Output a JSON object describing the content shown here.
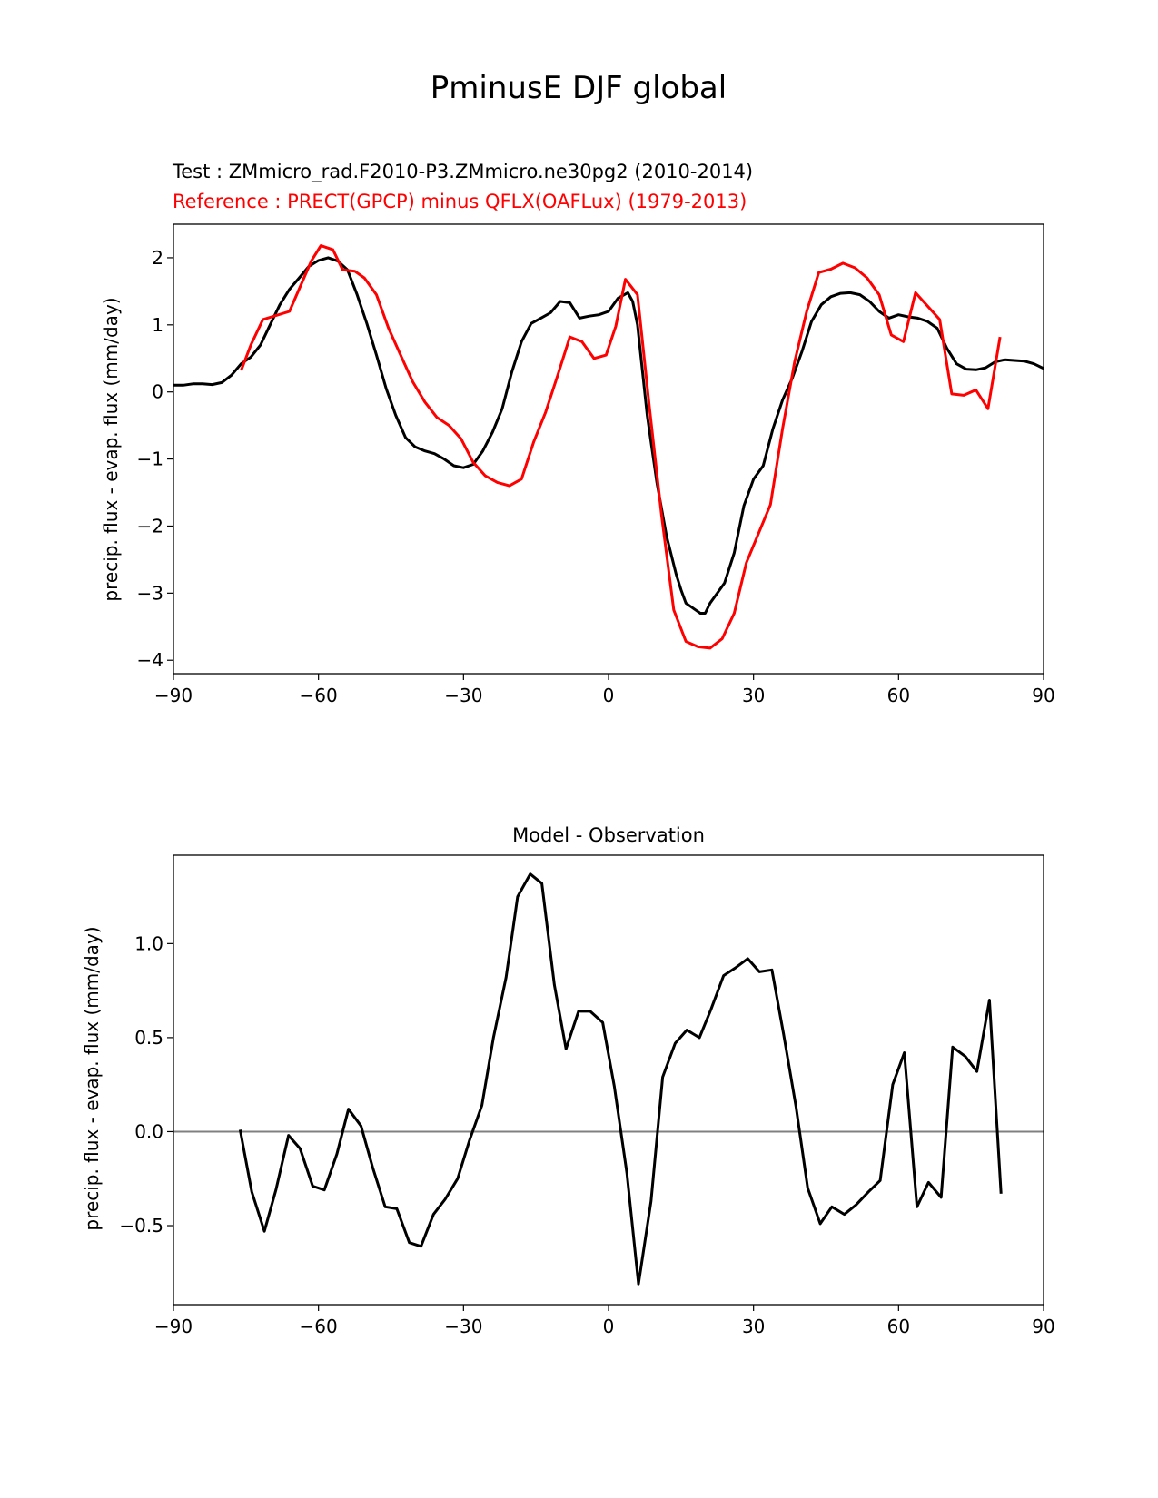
{
  "figure": {
    "title": "PminusE DJF global"
  },
  "colors": {
    "test": "#000000",
    "reference": "#ff0000",
    "zero_line": "#808080"
  },
  "chart_data": [
    {
      "type": "line",
      "title_test": "Test : ZMmicro_rad.F2010-P3.ZMmicro.ne30pg2 (2010-2014)",
      "title_reference": "Reference : PRECT(GPCP) minus QFLX(OAFLux) (1979-2013)",
      "xlabel": "",
      "ylabel": "precip. flux - evap. flux (mm/day)",
      "xlim": [
        -90,
        90
      ],
      "ylim": [
        -4.2,
        2.5
      ],
      "xticks": [
        -90,
        -60,
        -30,
        0,
        30,
        60,
        90
      ],
      "xtick_labels": [
        "−90",
        "−60",
        "−30",
        "0",
        "30",
        "60",
        "90"
      ],
      "yticks": [
        -4,
        -3,
        -2,
        -1,
        0,
        1,
        2
      ],
      "ytick_labels": [
        "−4",
        "−3",
        "−2",
        "−1",
        "0",
        "1",
        "2"
      ],
      "grid": false,
      "series": [
        {
          "key": "test",
          "x": [
            -90,
            -88,
            -86,
            -84,
            -82,
            -80,
            -78,
            -76,
            -74,
            -72,
            -70,
            -68,
            -66,
            -64,
            -62,
            -60,
            -58,
            -56,
            -54,
            -52,
            -50,
            -48,
            -46,
            -44,
            -42,
            -40,
            -38,
            -36,
            -34,
            -32,
            -30,
            -28,
            -26,
            -24,
            -22,
            -20,
            -18,
            -16,
            -14,
            -12,
            -10,
            -8,
            -6,
            -4,
            -2,
            0,
            2,
            4,
            5,
            6,
            8,
            10,
            12,
            14,
            15,
            16,
            18,
            19,
            20,
            21,
            22,
            24,
            26,
            28,
            30,
            32,
            34,
            36,
            38,
            40,
            42,
            44,
            46,
            48,
            50,
            52,
            54,
            56,
            58,
            60,
            62,
            64,
            66,
            68,
            70,
            72,
            74,
            76,
            78,
            80,
            82,
            84,
            86,
            88,
            90
          ],
          "y": [
            0.1,
            0.1,
            0.12,
            0.12,
            0.11,
            0.14,
            0.25,
            0.42,
            0.52,
            0.7,
            1.0,
            1.3,
            1.53,
            1.7,
            1.87,
            1.96,
            2.0,
            1.95,
            1.82,
            1.45,
            1.02,
            0.55,
            0.05,
            -0.35,
            -0.68,
            -0.82,
            -0.88,
            -0.92,
            -1.0,
            -1.1,
            -1.13,
            -1.08,
            -0.88,
            -0.6,
            -0.25,
            0.3,
            0.75,
            1.02,
            1.1,
            1.18,
            1.35,
            1.33,
            1.1,
            1.13,
            1.15,
            1.2,
            1.4,
            1.48,
            1.35,
            1.0,
            -0.35,
            -1.35,
            -2.15,
            -2.72,
            -2.95,
            -3.15,
            -3.25,
            -3.3,
            -3.3,
            -3.15,
            -3.05,
            -2.85,
            -2.4,
            -1.7,
            -1.3,
            -1.1,
            -0.55,
            -0.12,
            0.2,
            0.6,
            1.05,
            1.3,
            1.42,
            1.47,
            1.48,
            1.45,
            1.35,
            1.2,
            1.1,
            1.15,
            1.12,
            1.1,
            1.05,
            0.95,
            0.65,
            0.42,
            0.34,
            0.33,
            0.36,
            0.45,
            0.48,
            0.47,
            0.46,
            0.42,
            0.35
          ]
        },
        {
          "key": "reference",
          "x": [
            -76,
            -74,
            -71.5,
            -66,
            -61.5,
            -59.5,
            -57,
            -55,
            -52.5,
            -50.5,
            -48,
            -45.5,
            -43,
            -40.5,
            -38,
            -35.5,
            -33,
            -30.5,
            -28,
            -25.5,
            -23,
            -20.5,
            -18,
            -15.5,
            -13,
            -10.5,
            -8,
            -5.5,
            -3,
            -0.5,
            1.5,
            3.5,
            6,
            8.5,
            11,
            13.5,
            16,
            18.5,
            21,
            23.5,
            26,
            28.5,
            33.5,
            36,
            38.5,
            41,
            43.5,
            46,
            48.5,
            51,
            53.5,
            56,
            58.5,
            61,
            63.5,
            68.5,
            71,
            73.5,
            76,
            78.5,
            81
          ],
          "y": [
            0.32,
            0.7,
            1.08,
            1.2,
            1.95,
            2.18,
            2.12,
            1.82,
            1.8,
            1.7,
            1.45,
            0.95,
            0.55,
            0.15,
            -0.15,
            -0.38,
            -0.5,
            -0.7,
            -1.05,
            -1.25,
            -1.35,
            -1.4,
            -1.3,
            -0.75,
            -0.3,
            0.25,
            0.82,
            0.75,
            0.5,
            0.55,
            0.98,
            1.68,
            1.45,
            -0.25,
            -1.85,
            -3.25,
            -3.72,
            -3.8,
            -3.82,
            -3.68,
            -3.3,
            -2.55,
            -1.68,
            -0.55,
            0.45,
            1.2,
            1.78,
            1.83,
            1.92,
            1.85,
            1.7,
            1.45,
            0.85,
            0.75,
            1.48,
            1.08,
            -0.03,
            -0.05,
            0.03,
            -0.25,
            0.82
          ]
        }
      ]
    },
    {
      "type": "line",
      "title": "Model - Observation",
      "xlabel": "",
      "ylabel": "precip. flux - evap. flux (mm/day)",
      "xlim": [
        -90,
        90
      ],
      "ylim": [
        -0.92,
        1.47
      ],
      "xticks": [
        -90,
        -60,
        -30,
        0,
        30,
        60,
        90
      ],
      "xtick_labels": [
        "−90",
        "−60",
        "−30",
        "0",
        "30",
        "60",
        "90"
      ],
      "yticks": [
        -0.5,
        0.0,
        0.5,
        1.0
      ],
      "ytick_labels": [
        "−0.5",
        "0.0",
        "0.5",
        "1.0"
      ],
      "grid": false,
      "zero_line": 0,
      "series": [
        {
          "key": "test",
          "x": [
            -76.2,
            -73.8,
            -71.2,
            -68.8,
            -66.2,
            -63.8,
            -61.2,
            -58.8,
            -56.2,
            -53.8,
            -51.2,
            -48.8,
            -46.2,
            -43.8,
            -41.2,
            -38.8,
            -36.2,
            -33.8,
            -31.2,
            -28.8,
            -26.2,
            -23.8,
            -21.2,
            -18.8,
            -16.2,
            -13.8,
            -11.2,
            -8.8,
            -6.2,
            -3.8,
            -1.2,
            1.2,
            3.8,
            6.2,
            8.8,
            11.2,
            13.8,
            16.2,
            18.8,
            21.2,
            23.8,
            26.2,
            28.8,
            31.2,
            33.8,
            36.2,
            38.8,
            41.2,
            43.8,
            46.2,
            48.8,
            51.2,
            53.8,
            56.2,
            58.8,
            61.2,
            63.8,
            66.2,
            68.8,
            71.2,
            73.8,
            76.2,
            78.8,
            81.2
          ],
          "y": [
            0.01,
            -0.32,
            -0.53,
            -0.31,
            -0.02,
            -0.09,
            -0.29,
            -0.31,
            -0.12,
            0.12,
            0.03,
            -0.19,
            -0.4,
            -0.41,
            -0.59,
            -0.61,
            -0.44,
            -0.36,
            -0.25,
            -0.05,
            0.14,
            0.5,
            0.82,
            1.25,
            1.37,
            1.32,
            0.78,
            0.44,
            0.64,
            0.64,
            0.58,
            0.24,
            -0.22,
            -0.81,
            -0.37,
            0.29,
            0.47,
            0.54,
            0.5,
            0.65,
            0.83,
            0.87,
            0.92,
            0.85,
            0.86,
            0.52,
            0.13,
            -0.3,
            -0.49,
            -0.4,
            -0.44,
            -0.39,
            -0.32,
            -0.26,
            0.25,
            0.42,
            -0.4,
            -0.27,
            -0.35,
            0.45,
            0.4,
            0.32,
            0.7,
            -0.33
          ]
        }
      ]
    }
  ]
}
